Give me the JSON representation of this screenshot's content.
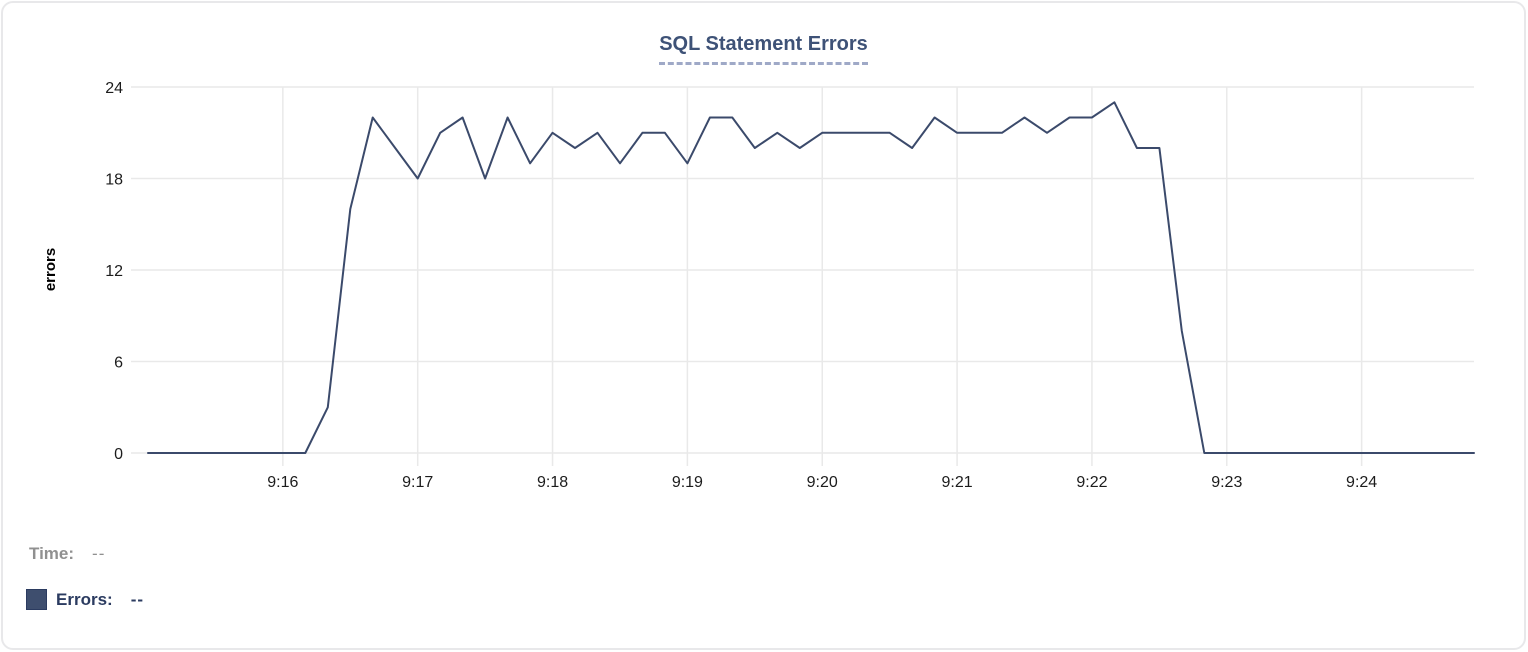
{
  "chart": {
    "title": "SQL Statement Errors",
    "ylabel": "errors"
  },
  "legend": {
    "time_label": "Time:",
    "time_value": "--",
    "errors_label": "Errors:",
    "errors_value": "--"
  },
  "colors": {
    "background": "#ffffff",
    "card_border": "#e8e8ea",
    "title": "#3e5277",
    "title_underline": "#9fa9c7",
    "grid": "#e9e9e9",
    "tick_label": "#1c1c1c",
    "axis_label": "#000000",
    "line": "#3b4a6b",
    "swatch": "#3e4e6e",
    "legend_time": "#909090",
    "legend_errors": "#2b3b60"
  },
  "chart_data": {
    "type": "line",
    "title": "SQL Statement Errors",
    "xlabel": "",
    "ylabel": "errors",
    "ylim": [
      0,
      24
    ],
    "y_ticks": [
      0,
      6,
      12,
      18,
      24
    ],
    "x_ticks": [
      "9:16",
      "9:17",
      "9:18",
      "9:19",
      "9:20",
      "9:21",
      "9:22",
      "9:23",
      "9:24"
    ],
    "x_domain": [
      "9:15:00",
      "9:24:50"
    ],
    "grid": true,
    "legend_position": "bottom-left",
    "series": [
      {
        "name": "Errors",
        "x": [
          "9:15:00",
          "9:15:10",
          "9:15:20",
          "9:15:30",
          "9:15:40",
          "9:15:50",
          "9:16:00",
          "9:16:10",
          "9:16:20",
          "9:16:30",
          "9:16:40",
          "9:16:50",
          "9:17:00",
          "9:17:10",
          "9:17:20",
          "9:17:30",
          "9:17:40",
          "9:17:50",
          "9:18:00",
          "9:18:10",
          "9:18:20",
          "9:18:30",
          "9:18:40",
          "9:18:50",
          "9:19:00",
          "9:19:10",
          "9:19:20",
          "9:19:30",
          "9:19:40",
          "9:19:50",
          "9:20:00",
          "9:20:10",
          "9:20:20",
          "9:20:30",
          "9:20:40",
          "9:20:50",
          "9:21:00",
          "9:21:10",
          "9:21:20",
          "9:21:30",
          "9:21:40",
          "9:21:50",
          "9:22:00",
          "9:22:10",
          "9:22:20",
          "9:22:30",
          "9:22:40",
          "9:22:50",
          "9:23:00",
          "9:23:10",
          "9:23:20",
          "9:23:30",
          "9:23:40",
          "9:23:50",
          "9:24:00",
          "9:24:10",
          "9:24:20",
          "9:24:30",
          "9:24:40",
          "9:24:50"
        ],
        "values": [
          0,
          0,
          0,
          0,
          0,
          0,
          0,
          0,
          3,
          16,
          22,
          20,
          18,
          21,
          22,
          18,
          22,
          19,
          21,
          20,
          21,
          19,
          21,
          21,
          19,
          22,
          22,
          20,
          21,
          20,
          21,
          21,
          21,
          21,
          20,
          22,
          21,
          21,
          21,
          22,
          21,
          22,
          22,
          23,
          20,
          20,
          8,
          0,
          0,
          0,
          0,
          0,
          0,
          0,
          0,
          0,
          0,
          0,
          0,
          0
        ]
      }
    ]
  }
}
